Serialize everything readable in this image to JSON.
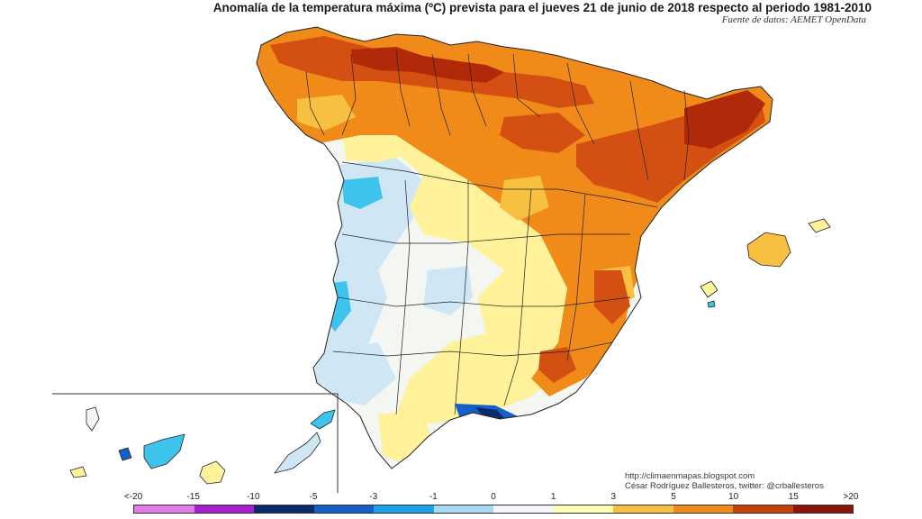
{
  "header": {
    "title": "Anomalía de la temperatura máxima (ºC) prevista para el jueves 21 de junio de 2018 respecto al periodo 1981-2010",
    "source": "Fuente de datos: AEMET OpenData"
  },
  "credits": {
    "url": "http://climaenmapas.blogspot.com",
    "author": "César Rodríguez Ballesteros, twitter: @crballesteros"
  },
  "legend": {
    "labels": [
      "<-20",
      "-15",
      "-10",
      "-5",
      "-3",
      "-1",
      "0",
      "1",
      "3",
      "5",
      "10",
      "15",
      ">20"
    ],
    "colors": [
      "#e27ae8",
      "#a81fd0",
      "#0a2a6b",
      "#1560c8",
      "#1aa2e8",
      "#a8d8f2",
      "#f4f8fc",
      "#ffffb0",
      "#f8c040",
      "#f08a18",
      "#c8400a",
      "#8c1408"
    ]
  },
  "map_colors": {
    "sea": "#ffffff",
    "border": "#222222",
    "neutral": "#f4f6f2",
    "light_blue": "#cfe7f5",
    "cyan": "#3ec4ec",
    "blue": "#1560c8",
    "navy": "#0a2a6b",
    "yellow": "#fff29a",
    "light_orange": "#f8c040",
    "orange": "#f08a18",
    "red_orange": "#d45012",
    "dark_red": "#b02a0a"
  }
}
